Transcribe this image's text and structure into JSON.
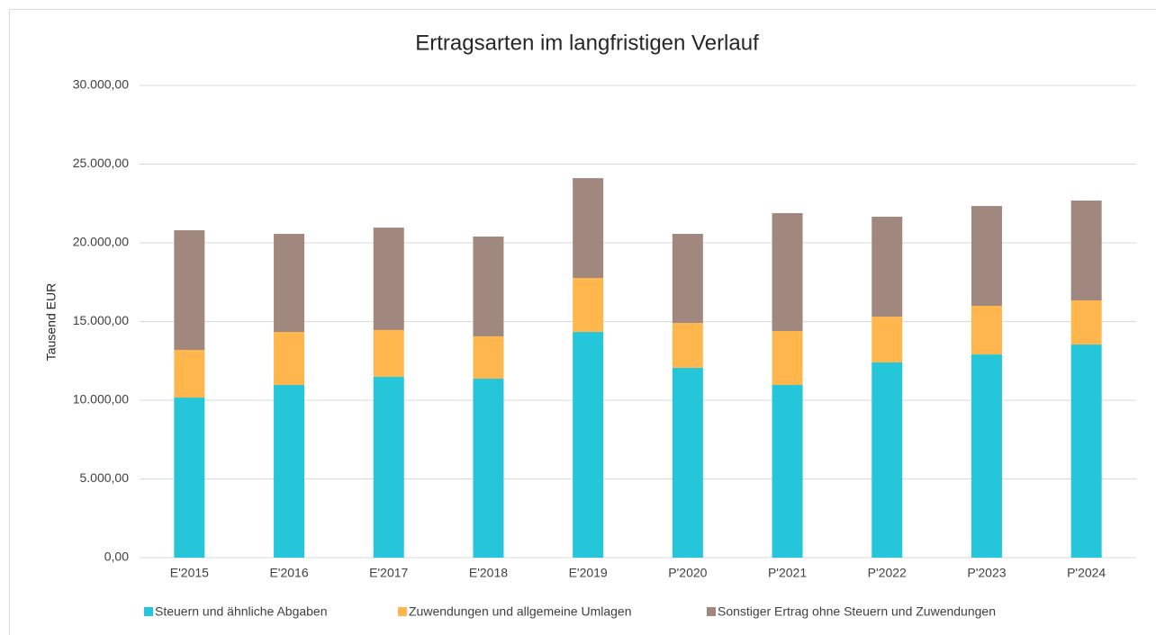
{
  "chart_data": {
    "type": "stacked_bar",
    "title": "Ertragsarten im langfristigen Verlauf",
    "y_label": "Tausend EUR",
    "categories": [
      "E'2015",
      "E'2016",
      "E'2017",
      "E'2018",
      "E'2019",
      "P'2020",
      "P'2021",
      "P'2022",
      "P'2023",
      "P'2024"
    ],
    "series": [
      {
        "name": "Steuern und ähnliche Abgaben",
        "color": "#26c6da",
        "values": [
          10170,
          10970,
          11490,
          11370,
          14340,
          12060,
          10970,
          12400,
          12910,
          13540
        ]
      },
      {
        "name": "Zuwendungen und allgemeine Umlagen",
        "color": "#ffb74d",
        "values": [
          3030,
          3370,
          2970,
          2690,
          3430,
          2850,
          3430,
          2910,
          3090,
          2800
        ]
      },
      {
        "name": "Sonstiger Ertrag ohne Steuern und Zuwendungen",
        "color": "#a1887f",
        "values": [
          7600,
          6230,
          6510,
          6340,
          6340,
          5660,
          7490,
          6350,
          6340,
          6350
        ]
      }
    ],
    "ylim": [
      0,
      30000
    ],
    "yticks": [
      {
        "value": 0,
        "label": "0,00"
      },
      {
        "value": 5000,
        "label": "5.000,00"
      },
      {
        "value": 10000,
        "label": "10.000,00"
      },
      {
        "value": 15000,
        "label": "15.000,00"
      },
      {
        "value": 20000,
        "label": "20.000,00"
      },
      {
        "value": 25000,
        "label": "25.000,00"
      },
      {
        "value": 30000,
        "label": "30.000,00"
      }
    ],
    "grid": true,
    "legend": "bottom"
  }
}
